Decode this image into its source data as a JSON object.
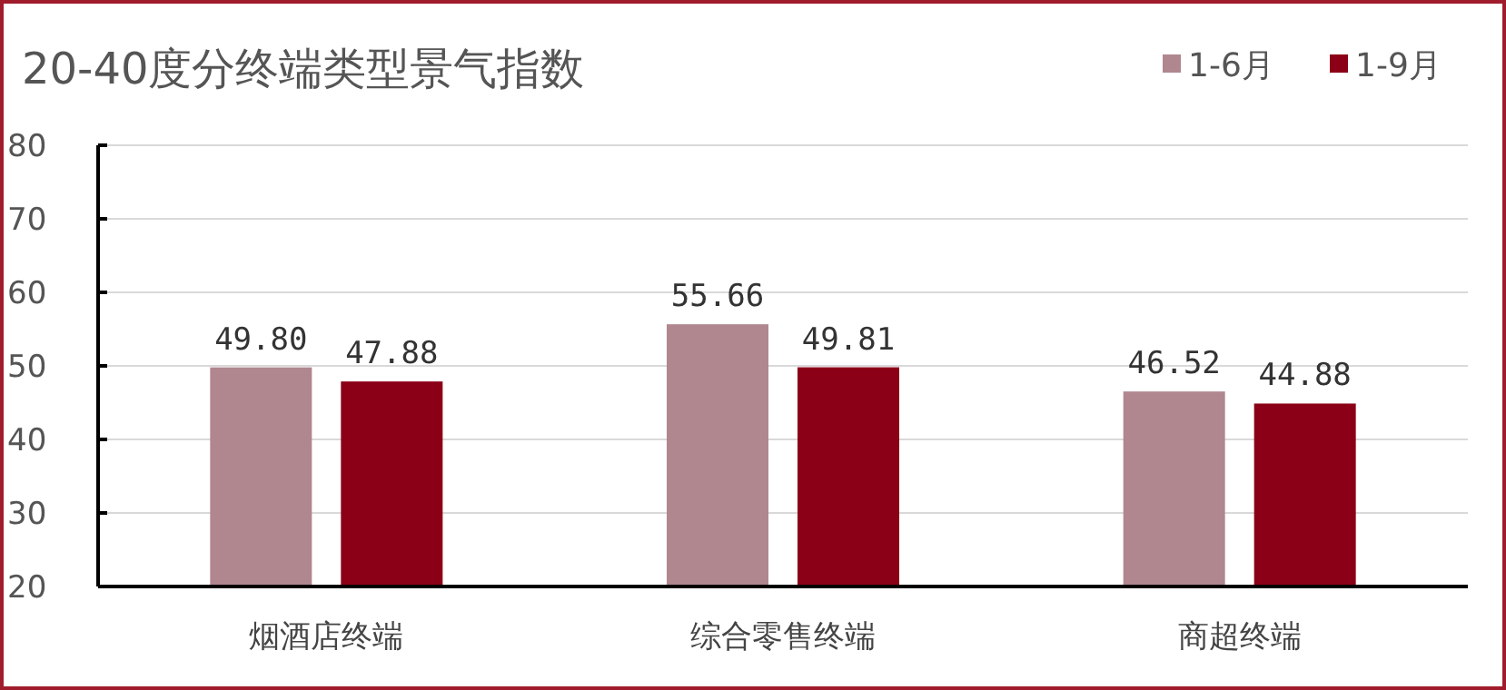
{
  "chart_data": {
    "type": "bar",
    "title": "20-40度分终端类型景气指数",
    "categories": [
      "烟酒店终端",
      "综合零售终端",
      "商超终端"
    ],
    "series": [
      {
        "name": "1-6月",
        "color": "#b0878f",
        "values": [
          49.8,
          55.66,
          46.52
        ],
        "value_labels": [
          "49.80",
          "55.66",
          "46.52"
        ]
      },
      {
        "name": "1-9月",
        "color": "#8b0016",
        "values": [
          47.88,
          49.81,
          44.88
        ],
        "value_labels": [
          "47.88",
          "49.81",
          "44.88"
        ]
      }
    ],
    "ylim": [
      20,
      80
    ],
    "yticks": [
      20,
      30,
      40,
      50,
      60,
      70,
      80
    ],
    "grid": "y",
    "legend": "top right"
  }
}
